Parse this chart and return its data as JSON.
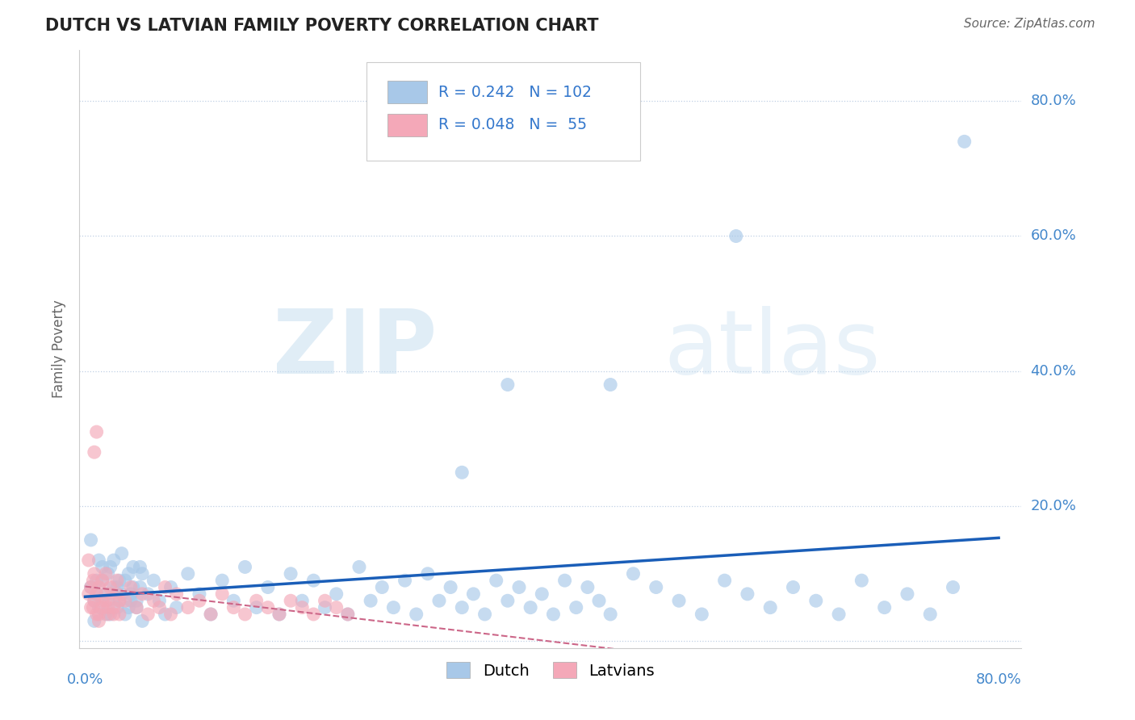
{
  "title": "DUTCH VS LATVIAN FAMILY POVERTY CORRELATION CHART",
  "source": "Source: ZipAtlas.com",
  "ylabel": "Family Poverty",
  "xlim": [
    0,
    0.8
  ],
  "ylim": [
    0,
    0.85
  ],
  "watermark_zip": "ZIP",
  "watermark_atlas": "atlas",
  "dutch_R": 0.242,
  "dutch_N": 102,
  "latvian_R": 0.048,
  "latvian_N": 55,
  "dutch_color": "#a8c8e8",
  "latvian_color": "#f4a8b8",
  "dutch_line_color": "#1a5eb8",
  "latvian_line_color": "#cc6688",
  "legend_dutch_label": "Dutch",
  "legend_latvian_label": "Latvians",
  "dutch_x": [
    0.005,
    0.008,
    0.01,
    0.012,
    0.015,
    0.018,
    0.02,
    0.022,
    0.025,
    0.028,
    0.03,
    0.032,
    0.035,
    0.038,
    0.04,
    0.042,
    0.045,
    0.048,
    0.05,
    0.005,
    0.008,
    0.01,
    0.012,
    0.015,
    0.018,
    0.02,
    0.022,
    0.025,
    0.028,
    0.03,
    0.032,
    0.035,
    0.038,
    0.04,
    0.042,
    0.045,
    0.048,
    0.05,
    0.055,
    0.06,
    0.065,
    0.07,
    0.075,
    0.08,
    0.09,
    0.1,
    0.11,
    0.12,
    0.13,
    0.14,
    0.15,
    0.16,
    0.17,
    0.18,
    0.19,
    0.2,
    0.21,
    0.22,
    0.23,
    0.24,
    0.25,
    0.26,
    0.27,
    0.28,
    0.29,
    0.3,
    0.31,
    0.32,
    0.33,
    0.34,
    0.35,
    0.36,
    0.37,
    0.38,
    0.39,
    0.4,
    0.41,
    0.42,
    0.43,
    0.44,
    0.45,
    0.46,
    0.48,
    0.5,
    0.52,
    0.54,
    0.56,
    0.58,
    0.6,
    0.62,
    0.64,
    0.66,
    0.68,
    0.7,
    0.72,
    0.74,
    0.76,
    0.37,
    0.57,
    0.33,
    0.46,
    0.77
  ],
  "dutch_y": [
    0.08,
    0.06,
    0.09,
    0.05,
    0.11,
    0.07,
    0.1,
    0.04,
    0.12,
    0.08,
    0.06,
    0.13,
    0.09,
    0.05,
    0.07,
    0.11,
    0.06,
    0.08,
    0.1,
    0.15,
    0.03,
    0.07,
    0.12,
    0.09,
    0.04,
    0.06,
    0.11,
    0.08,
    0.05,
    0.09,
    0.07,
    0.04,
    0.1,
    0.06,
    0.08,
    0.05,
    0.11,
    0.03,
    0.07,
    0.09,
    0.06,
    0.04,
    0.08,
    0.05,
    0.1,
    0.07,
    0.04,
    0.09,
    0.06,
    0.11,
    0.05,
    0.08,
    0.04,
    0.1,
    0.06,
    0.09,
    0.05,
    0.07,
    0.04,
    0.11,
    0.06,
    0.08,
    0.05,
    0.09,
    0.04,
    0.1,
    0.06,
    0.08,
    0.05,
    0.07,
    0.04,
    0.09,
    0.06,
    0.08,
    0.05,
    0.07,
    0.04,
    0.09,
    0.05,
    0.08,
    0.06,
    0.04,
    0.1,
    0.08,
    0.06,
    0.04,
    0.09,
    0.07,
    0.05,
    0.08,
    0.06,
    0.04,
    0.09,
    0.05,
    0.07,
    0.04,
    0.08,
    0.38,
    0.6,
    0.25,
    0.38,
    0.74
  ],
  "latvian_x": [
    0.003,
    0.005,
    0.007,
    0.008,
    0.01,
    0.012,
    0.015,
    0.018,
    0.02,
    0.022,
    0.025,
    0.028,
    0.03,
    0.003,
    0.005,
    0.007,
    0.008,
    0.01,
    0.012,
    0.015,
    0.018,
    0.02,
    0.022,
    0.025,
    0.028,
    0.03,
    0.035,
    0.04,
    0.045,
    0.05,
    0.055,
    0.06,
    0.065,
    0.07,
    0.075,
    0.08,
    0.09,
    0.1,
    0.11,
    0.12,
    0.13,
    0.14,
    0.15,
    0.16,
    0.17,
    0.18,
    0.19,
    0.2,
    0.21,
    0.22,
    0.23,
    0.01,
    0.008,
    0.012,
    0.015
  ],
  "latvian_y": [
    0.07,
    0.05,
    0.09,
    0.06,
    0.04,
    0.08,
    0.06,
    0.1,
    0.05,
    0.07,
    0.04,
    0.09,
    0.06,
    0.12,
    0.08,
    0.05,
    0.1,
    0.07,
    0.04,
    0.09,
    0.06,
    0.04,
    0.08,
    0.05,
    0.07,
    0.04,
    0.06,
    0.08,
    0.05,
    0.07,
    0.04,
    0.06,
    0.05,
    0.08,
    0.04,
    0.07,
    0.05,
    0.06,
    0.04,
    0.07,
    0.05,
    0.04,
    0.06,
    0.05,
    0.04,
    0.06,
    0.05,
    0.04,
    0.06,
    0.05,
    0.04,
    0.31,
    0.28,
    0.03,
    0.05
  ]
}
